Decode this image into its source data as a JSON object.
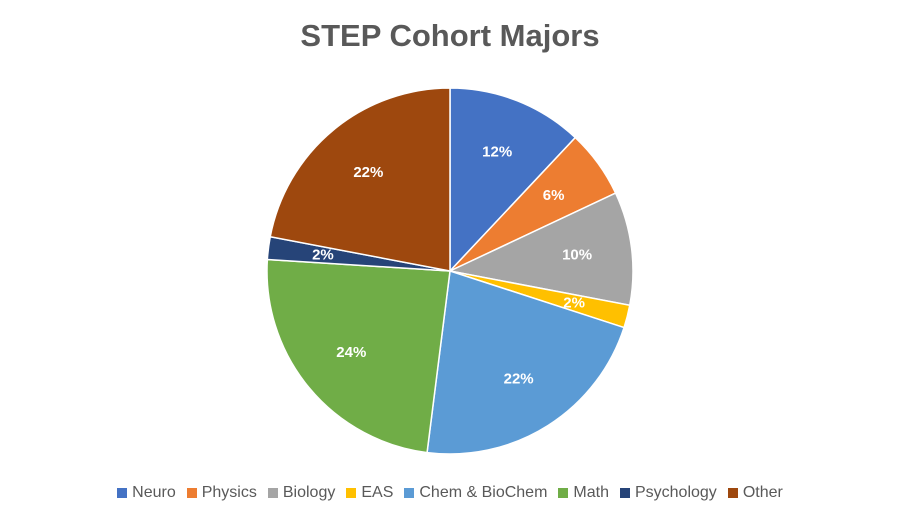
{
  "chart_data": {
    "type": "pie",
    "title": "STEP Cohort Majors",
    "categories": [
      "Neuro",
      "Physics",
      "Biology",
      "EAS",
      "Chem & BioChem",
      "Math",
      "Psychology",
      "Other"
    ],
    "values": [
      12,
      6,
      10,
      2,
      22,
      24,
      2,
      22
    ],
    "labels": [
      "12%",
      "6%",
      "10%",
      "2%",
      "22%",
      "24%",
      "2%",
      "22%"
    ],
    "colors": [
      "#4472C4",
      "#ED7D31",
      "#A5A5A5",
      "#FFC000",
      "#5B9BD5",
      "#70AD47",
      "#264478",
      "#9E480E"
    ],
    "legend_position": "bottom",
    "start_angle": "12 o'clock, clockwise"
  }
}
